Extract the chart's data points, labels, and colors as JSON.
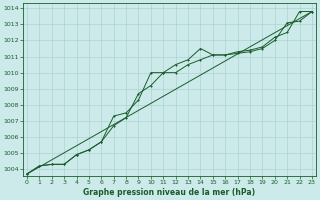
{
  "title": "Graphe pression niveau de la mer (hPa)",
  "bg_color": "#cceaea",
  "grid_color": "#aad4d4",
  "line_color": "#1a5c2a",
  "x_ticks": [
    0,
    1,
    2,
    3,
    4,
    5,
    6,
    7,
    8,
    9,
    10,
    11,
    12,
    13,
    14,
    15,
    16,
    17,
    18,
    19,
    20,
    21,
    22,
    23
  ],
  "y_ticks": [
    1004,
    1005,
    1006,
    1007,
    1008,
    1009,
    1010,
    1011,
    1012,
    1013,
    1014
  ],
  "ylim": [
    1003.6,
    1014.3
  ],
  "xlim": [
    -0.3,
    23.3
  ],
  "series1": [
    1003.7,
    1004.2,
    1004.3,
    1004.3,
    1004.9,
    1005.2,
    1005.7,
    1006.7,
    1007.2,
    1008.7,
    1009.2,
    1010.0,
    1010.0,
    1010.5,
    1010.8,
    1011.1,
    1011.1,
    1011.2,
    1011.3,
    1011.5,
    1012.0,
    1013.1,
    1013.2,
    1013.8
  ],
  "series2": [
    1003.7,
    1004.2,
    1004.3,
    1004.3,
    1004.9,
    1005.2,
    1005.7,
    1007.3,
    1007.5,
    1008.3,
    1010.0,
    1010.0,
    1010.5,
    1010.8,
    1011.5,
    1011.1,
    1011.1,
    1011.3,
    1011.4,
    1011.6,
    1012.2,
    1012.5,
    1013.8,
    1013.8
  ],
  "series3_x": [
    0,
    23
  ],
  "series3_y": [
    1003.7,
    1013.8
  ]
}
